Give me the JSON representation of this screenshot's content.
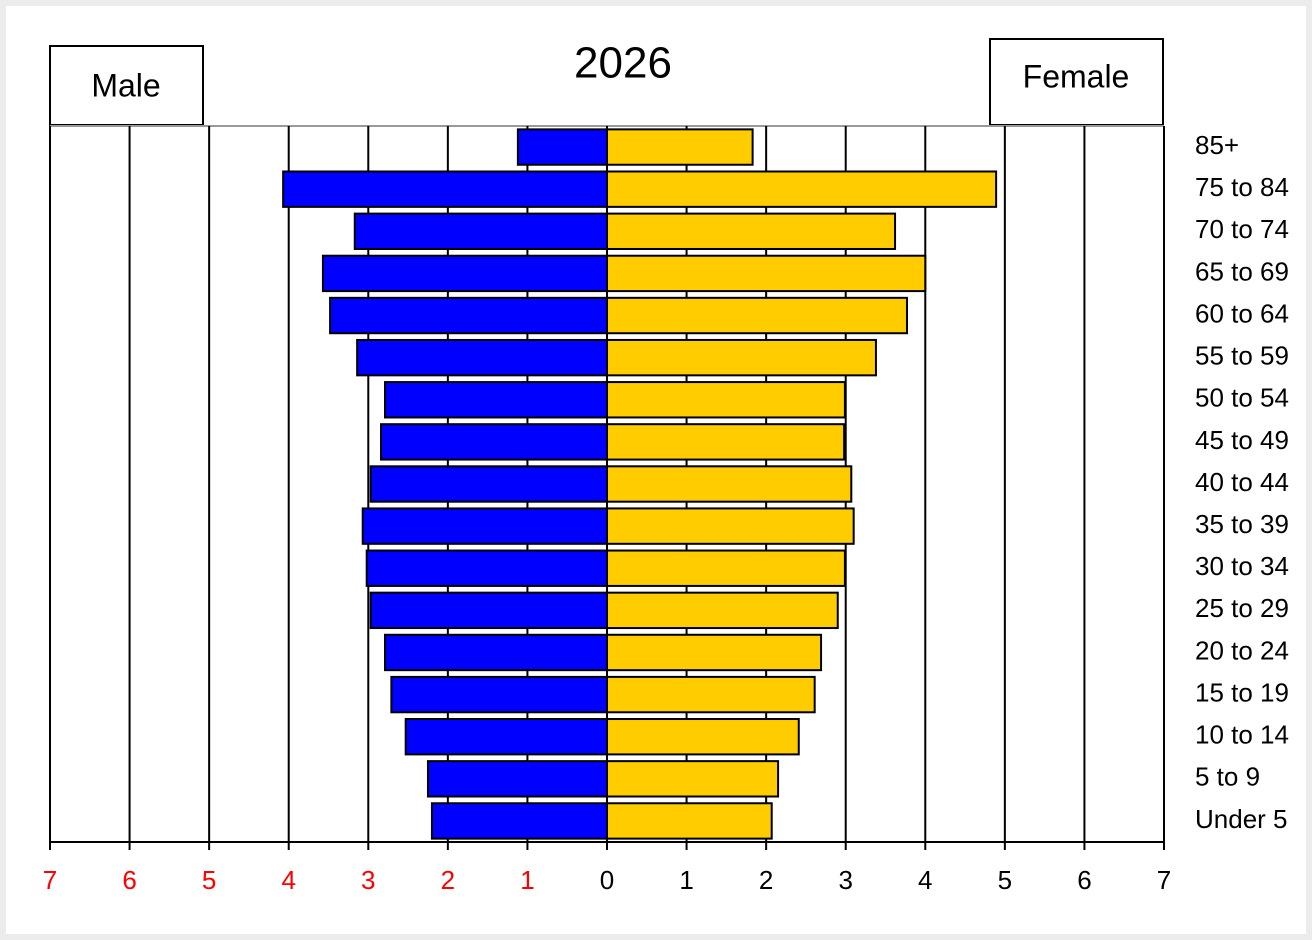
{
  "chart_data": {
    "type": "population-pyramid",
    "title": "2026",
    "categories": [
      "85+",
      "75 to 84",
      "70 to 74",
      "65 to 69",
      "60 to 64",
      "55 to 59",
      "50 to 54",
      "45 to 49",
      "40 to 44",
      "35 to 39",
      "30 to 34",
      "25 to 29",
      "20 to 24",
      "15 to 19",
      "10 to 14",
      "5 to 9",
      "Under 5"
    ],
    "series": [
      {
        "name": "Male",
        "color": "#0000ff",
        "values": [
          -1.12,
          -4.07,
          -3.17,
          -3.57,
          -3.48,
          -3.14,
          -2.79,
          -2.84,
          -2.97,
          -3.07,
          -3.02,
          -2.97,
          -2.79,
          -2.71,
          -2.53,
          -2.25,
          -2.2
        ]
      },
      {
        "name": "Female",
        "color": "#ffcc00",
        "values": [
          1.83,
          4.89,
          3.62,
          4.0,
          3.77,
          3.38,
          2.99,
          2.98,
          3.07,
          3.1,
          2.99,
          2.9,
          2.69,
          2.61,
          2.41,
          2.15,
          2.07
        ]
      }
    ],
    "xlim": [
      -7,
      7
    ],
    "xticks": [
      {
        "value": -7,
        "label": "7"
      },
      {
        "value": -6,
        "label": "6"
      },
      {
        "value": -5,
        "label": "5"
      },
      {
        "value": -4,
        "label": "4"
      },
      {
        "value": -3,
        "label": "3"
      },
      {
        "value": -2,
        "label": "2"
      },
      {
        "value": -1,
        "label": "1"
      },
      0,
      1,
      2,
      3,
      4,
      5,
      6,
      7
    ],
    "negative_tick_color": "#ff0000",
    "grid": true
  }
}
